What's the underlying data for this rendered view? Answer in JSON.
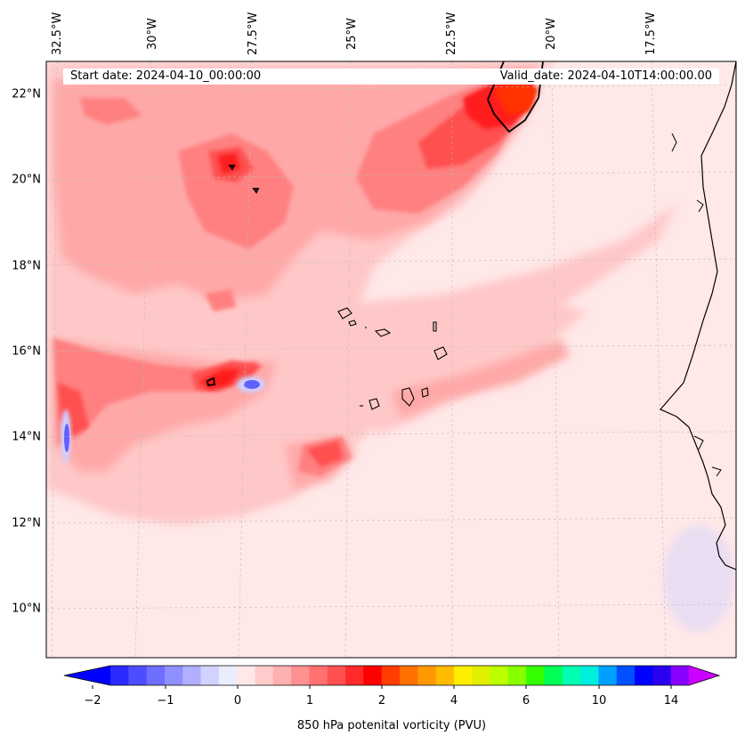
{
  "header": {
    "start_date": "Start date: 2024-04-10_00:00:00",
    "valid_date": "Valid_date: 2024-04-10T14:00:00.00"
  },
  "map": {
    "lon_labels": [
      "32.5°W",
      "30°W",
      "27.5°W",
      "25°W",
      "22.5°W",
      "20°W",
      "17.5°W"
    ],
    "lat_labels": [
      "22°N",
      "20°N",
      "18°N",
      "16°N",
      "14°N",
      "12°N",
      "10°N"
    ],
    "colors": {
      "background": "#ffe8e8",
      "light_pink": "#ffc8c8",
      "pink": "#ffa8a8",
      "salmon": "#ff8080",
      "red_light": "#ff5050",
      "red": "#ff1a1a",
      "orange_red": "#ff3300",
      "light_blue": "#d0d0ff",
      "blue": "#6060ff",
      "coast": "#000000"
    }
  },
  "colorbar": {
    "label": "850 hPa potenital vorticity (PVU)",
    "ticks": [
      "−2",
      "−1",
      "0",
      "1",
      "2",
      "4",
      "6",
      "10",
      "14"
    ],
    "colors": [
      "#0000ff",
      "#2a2aff",
      "#4d4dff",
      "#6e6eff",
      "#8f8fff",
      "#b0b0ff",
      "#d2d2ff",
      "#ececff",
      "#ffe8e8",
      "#ffcccc",
      "#ffb0b0",
      "#ff9090",
      "#ff7070",
      "#ff5050",
      "#ff2a2a",
      "#ff0000",
      "#ff3d00",
      "#ff7000",
      "#ff9900",
      "#ffbb00",
      "#ffee00",
      "#e0f000",
      "#bbff00",
      "#88ff00",
      "#33ff00",
      "#00ff55",
      "#00ffb0",
      "#00eedd",
      "#00a0ff",
      "#0050ff",
      "#0000ff",
      "#2a00f0",
      "#8800ff",
      "#cc00ff"
    ]
  }
}
